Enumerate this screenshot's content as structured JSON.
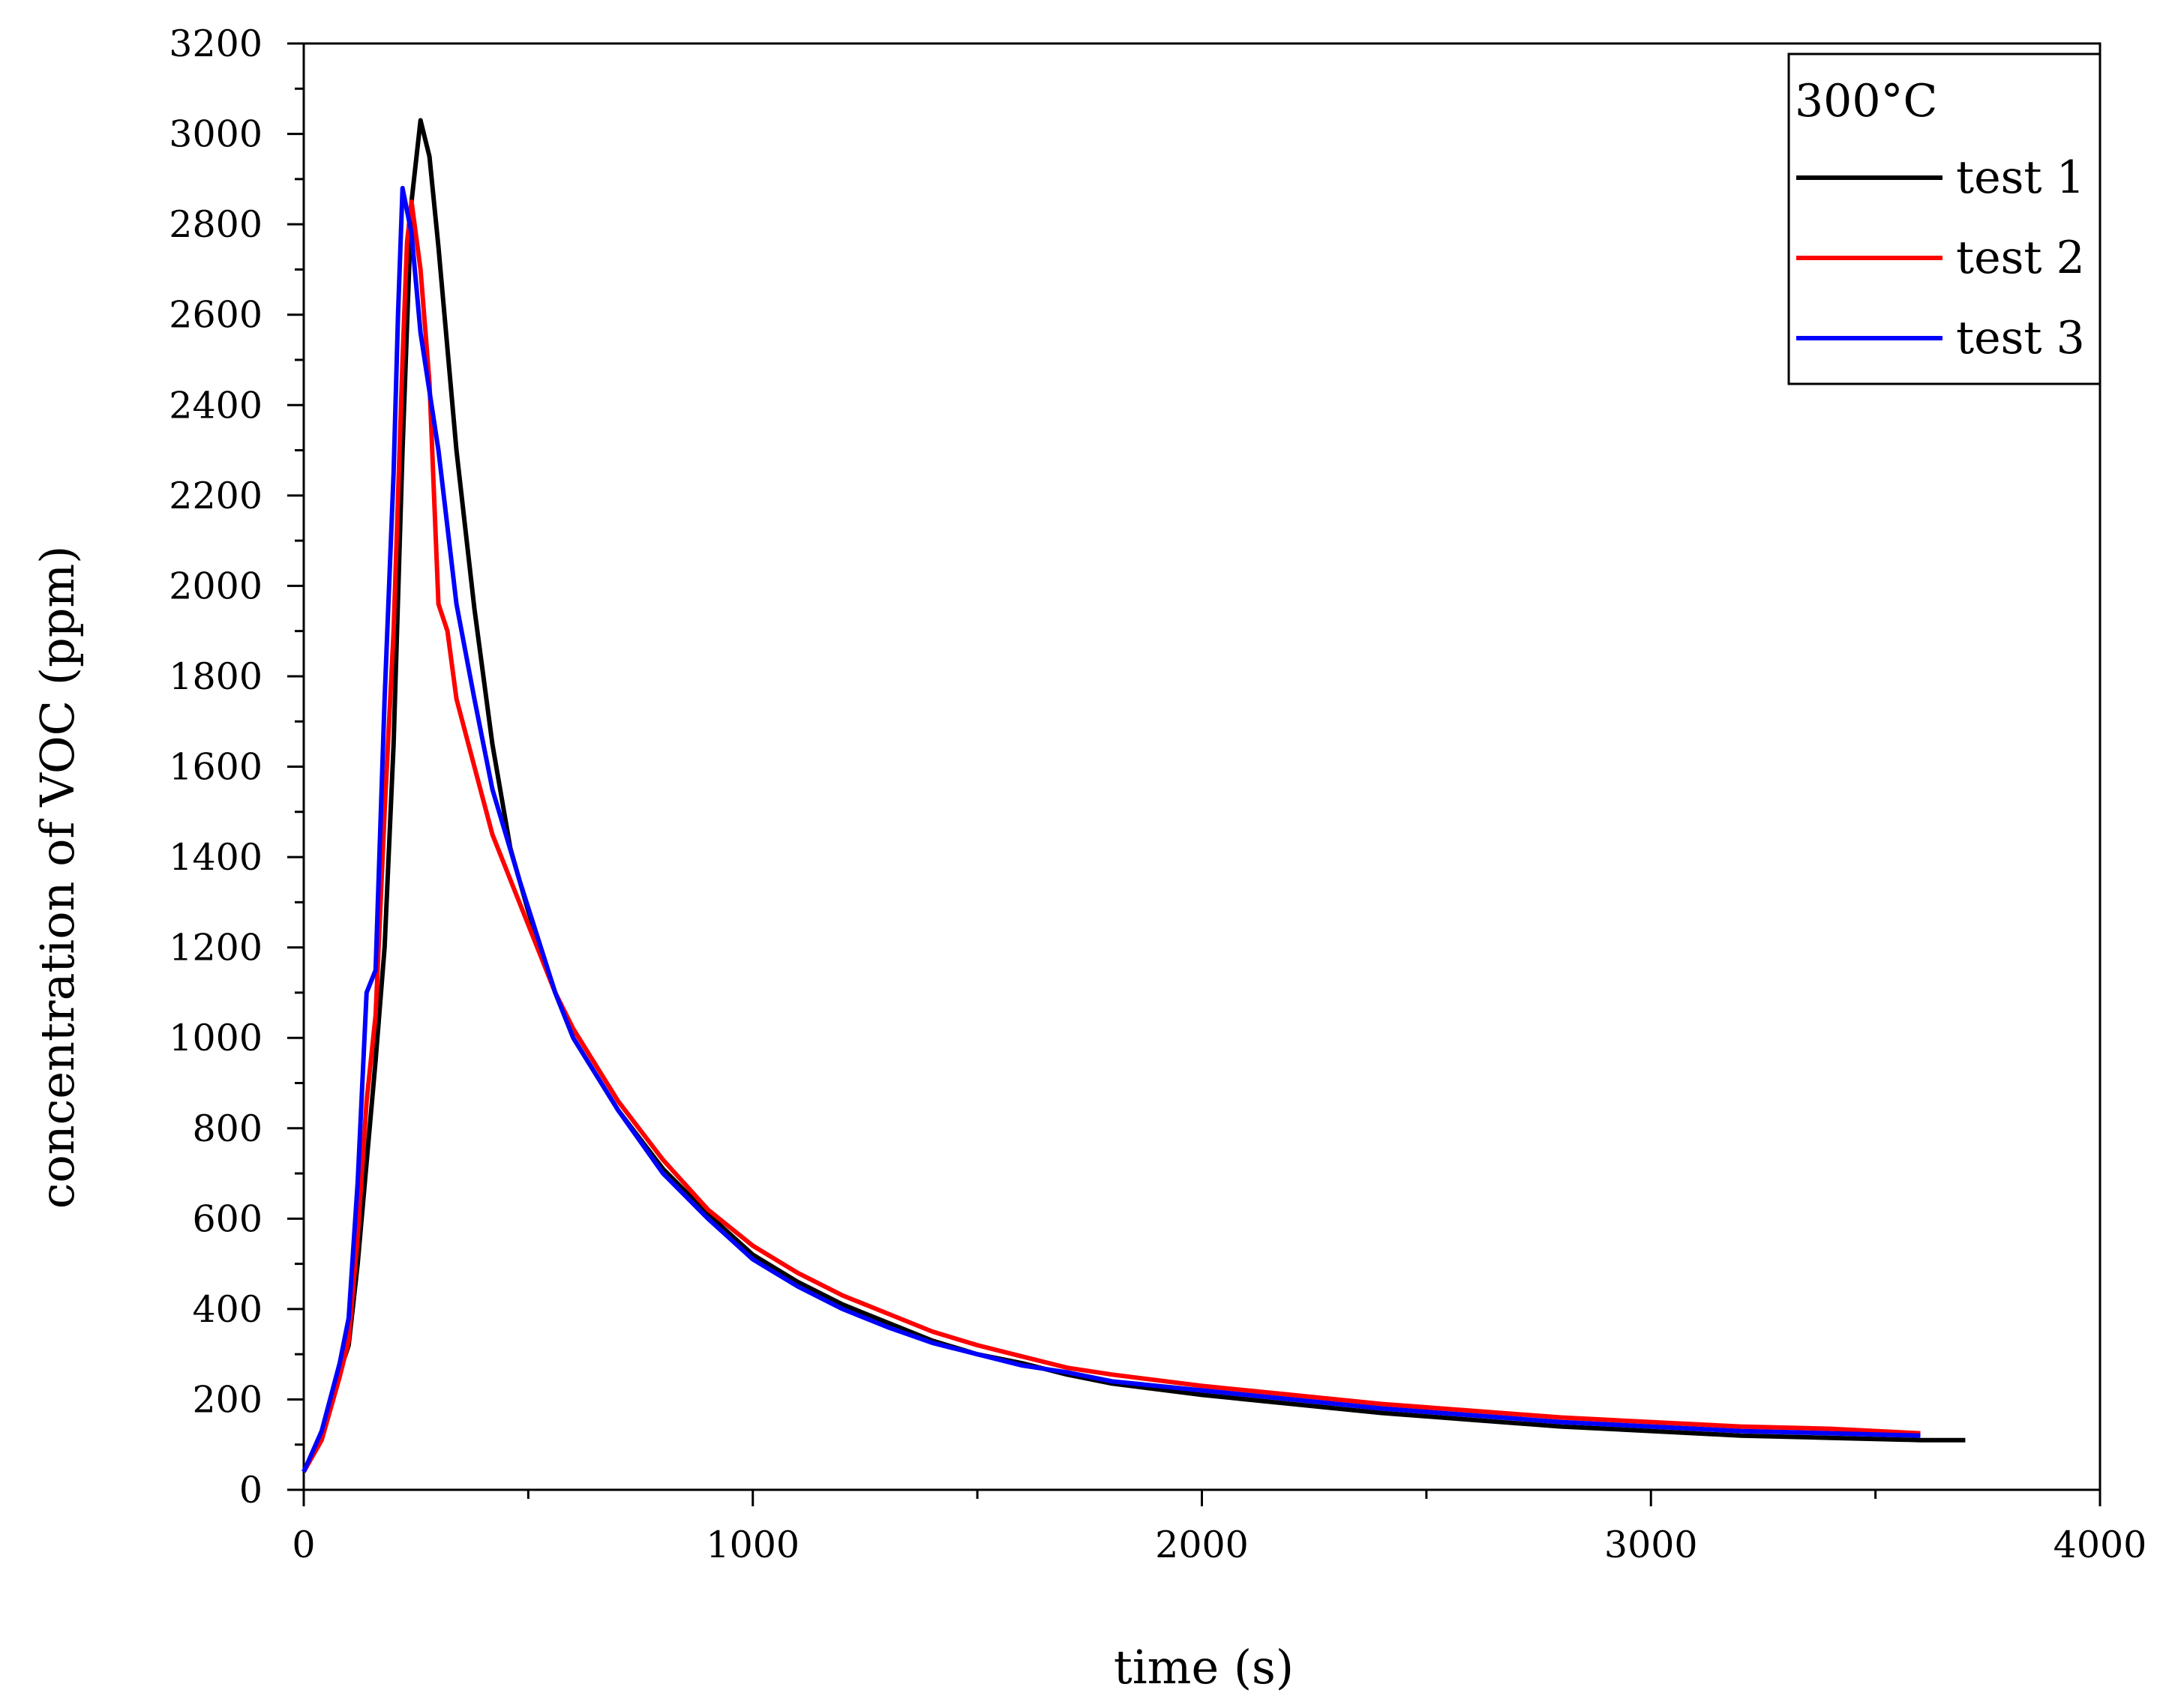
{
  "chart_data": {
    "type": "line",
    "xlabel": "time (s)",
    "ylabel": "concentration of VOC (ppm)",
    "xlim": [
      0,
      4000
    ],
    "ylim": [
      0,
      3200
    ],
    "xticks": [
      0,
      1000,
      2000,
      3000,
      4000
    ],
    "yticks": [
      0,
      200,
      400,
      600,
      800,
      1000,
      1200,
      1400,
      1600,
      1800,
      2000,
      2200,
      2400,
      2600,
      2800,
      3000,
      3200
    ],
    "grid": false,
    "legend": {
      "title": "300°C",
      "position": "top-right"
    },
    "series": [
      {
        "name": "test 1",
        "color": "#000000",
        "points": [
          [
            0,
            40
          ],
          [
            40,
            120
          ],
          [
            80,
            260
          ],
          [
            100,
            320
          ],
          [
            120,
            500
          ],
          [
            160,
            950
          ],
          [
            180,
            1200
          ],
          [
            200,
            1650
          ],
          [
            220,
            2300
          ],
          [
            240,
            2850
          ],
          [
            260,
            3030
          ],
          [
            280,
            2950
          ],
          [
            300,
            2750
          ],
          [
            340,
            2300
          ],
          [
            380,
            1950
          ],
          [
            420,
            1650
          ],
          [
            460,
            1420
          ],
          [
            500,
            1280
          ],
          [
            560,
            1100
          ],
          [
            600,
            1000
          ],
          [
            700,
            840
          ],
          [
            800,
            710
          ],
          [
            900,
            610
          ],
          [
            1000,
            520
          ],
          [
            1100,
            460
          ],
          [
            1200,
            410
          ],
          [
            1300,
            370
          ],
          [
            1400,
            330
          ],
          [
            1500,
            300
          ],
          [
            1600,
            280
          ],
          [
            1700,
            255
          ],
          [
            1800,
            235
          ],
          [
            2000,
            210
          ],
          [
            2200,
            190
          ],
          [
            2400,
            170
          ],
          [
            2600,
            155
          ],
          [
            2800,
            140
          ],
          [
            3000,
            130
          ],
          [
            3200,
            120
          ],
          [
            3400,
            115
          ],
          [
            3600,
            110
          ],
          [
            3700,
            110
          ]
        ]
      },
      {
        "name": "test 2",
        "color": "#ff0000",
        "points": [
          [
            0,
            40
          ],
          [
            40,
            110
          ],
          [
            80,
            250
          ],
          [
            100,
            330
          ],
          [
            120,
            560
          ],
          [
            140,
            860
          ],
          [
            160,
            1050
          ],
          [
            180,
            1500
          ],
          [
            200,
            1900
          ],
          [
            220,
            2500
          ],
          [
            230,
            2760
          ],
          [
            240,
            2850
          ],
          [
            260,
            2700
          ],
          [
            280,
            2450
          ],
          [
            300,
            1960
          ],
          [
            320,
            1900
          ],
          [
            340,
            1750
          ],
          [
            380,
            1600
          ],
          [
            420,
            1450
          ],
          [
            480,
            1300
          ],
          [
            560,
            1100
          ],
          [
            600,
            1020
          ],
          [
            700,
            860
          ],
          [
            800,
            730
          ],
          [
            900,
            620
          ],
          [
            1000,
            540
          ],
          [
            1100,
            480
          ],
          [
            1200,
            430
          ],
          [
            1300,
            390
          ],
          [
            1400,
            350
          ],
          [
            1500,
            320
          ],
          [
            1600,
            295
          ],
          [
            1700,
            270
          ],
          [
            1800,
            255
          ],
          [
            2000,
            230
          ],
          [
            2200,
            210
          ],
          [
            2400,
            190
          ],
          [
            2600,
            175
          ],
          [
            2800,
            160
          ],
          [
            3000,
            150
          ],
          [
            3200,
            140
          ],
          [
            3400,
            135
          ],
          [
            3600,
            125
          ]
        ]
      },
      {
        "name": "test 3",
        "color": "#0000ff",
        "points": [
          [
            0,
            40
          ],
          [
            40,
            130
          ],
          [
            80,
            280
          ],
          [
            100,
            380
          ],
          [
            120,
            680
          ],
          [
            140,
            1100
          ],
          [
            160,
            1150
          ],
          [
            180,
            1750
          ],
          [
            200,
            2250
          ],
          [
            210,
            2600
          ],
          [
            220,
            2880
          ],
          [
            240,
            2780
          ],
          [
            260,
            2560
          ],
          [
            300,
            2300
          ],
          [
            340,
            1960
          ],
          [
            380,
            1750
          ],
          [
            420,
            1550
          ],
          [
            480,
            1350
          ],
          [
            560,
            1100
          ],
          [
            600,
            1000
          ],
          [
            700,
            840
          ],
          [
            800,
            700
          ],
          [
            900,
            600
          ],
          [
            1000,
            510
          ],
          [
            1100,
            450
          ],
          [
            1200,
            400
          ],
          [
            1300,
            360
          ],
          [
            1400,
            325
          ],
          [
            1500,
            300
          ],
          [
            1600,
            275
          ],
          [
            1700,
            260
          ],
          [
            1800,
            240
          ],
          [
            2000,
            220
          ],
          [
            2200,
            200
          ],
          [
            2400,
            180
          ],
          [
            2600,
            165
          ],
          [
            2800,
            150
          ],
          [
            3000,
            140
          ],
          [
            3200,
            130
          ],
          [
            3400,
            125
          ],
          [
            3600,
            120
          ]
        ]
      }
    ]
  }
}
